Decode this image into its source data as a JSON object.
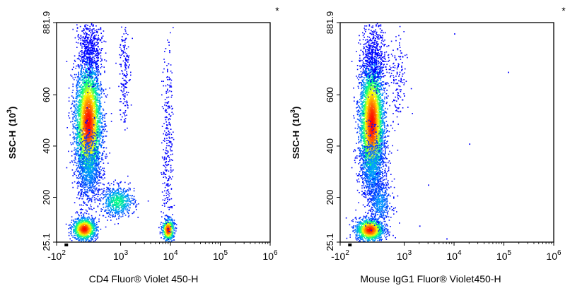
{
  "chart_data": [
    {
      "type": "scatter",
      "subtype": "flow-cytometry-density-dot-plot",
      "title": "",
      "corner_mark": "*",
      "xlabel": "CD4 Fluor® Violet 450-H",
      "ylabel": "SSC-H (10^3)",
      "ylabel_main": "SSC-H",
      "ylabel_unit_base": "(10",
      "ylabel_unit_exp": "3",
      "ylabel_unit_close": ")",
      "x_scale": "biexponential",
      "xlim": [
        -100,
        1000000
      ],
      "ylim": [
        25.1,
        881.9
      ],
      "x_ticks": [
        {
          "value": -100,
          "base": "-10",
          "exp": "2"
        },
        {
          "value": 1000,
          "base": "10",
          "exp": "3"
        },
        {
          "value": 10000,
          "base": "10",
          "exp": "4"
        },
        {
          "value": 100000,
          "base": "10",
          "exp": "5"
        },
        {
          "value": 1000000,
          "base": "10",
          "exp": "6"
        }
      ],
      "y_ticks": [
        {
          "value": 25.1,
          "label": "25.1"
        },
        {
          "value": 200,
          "label": "200"
        },
        {
          "value": 400,
          "label": "400"
        },
        {
          "value": 600,
          "label": "600"
        },
        {
          "value": 881.9,
          "label": "881.9"
        }
      ],
      "colormap": [
        "#0000ff",
        "#00a0ff",
        "#00ff80",
        "#ffff00",
        "#ff8000",
        "#ff0000"
      ],
      "populations": [
        {
          "x": 220,
          "y": 490,
          "sx_decades": 0.13,
          "sy": 115,
          "n": 4200,
          "peak_color": "#ff0000"
        },
        {
          "x": 230,
          "y": 320,
          "sx_decades": 0.12,
          "sy": 70,
          "n": 700,
          "peak_color": "#00a0ff"
        },
        {
          "x": 240,
          "y": 780,
          "sx_decades": 0.12,
          "sy": 60,
          "n": 500,
          "peak_color": "#0000ff"
        },
        {
          "x": 180,
          "y": 78,
          "sx_decades": 0.12,
          "sy": 22,
          "n": 1100,
          "peak_color": "#ff0000"
        },
        {
          "x": 850,
          "y": 185,
          "sx_decades": 0.17,
          "sy": 30,
          "n": 650,
          "peak_color": "#00ff80"
        },
        {
          "x": 1150,
          "y": 690,
          "sx_decades": 0.05,
          "sy": 110,
          "n": 180,
          "peak_color": "#0000ff"
        },
        {
          "x": 8800,
          "y": 75,
          "sx_decades": 0.06,
          "sy": 22,
          "n": 520,
          "peak_color": "#ff0000"
        },
        {
          "x": 8600,
          "y": 430,
          "sx_decades": 0.05,
          "sy": 200,
          "n": 300,
          "peak_color": "#0000ff"
        }
      ]
    },
    {
      "type": "scatter",
      "subtype": "flow-cytometry-density-dot-plot",
      "title": "",
      "corner_mark": "*",
      "xlabel": "Mouse IgG1 Fluor® Violet450-H",
      "ylabel": "SSC-H (10^3)",
      "ylabel_main": "SSC-H",
      "ylabel_unit_base": "(10",
      "ylabel_unit_exp": "3",
      "ylabel_unit_close": ")",
      "x_scale": "biexponential",
      "xlim": [
        -100,
        1000000
      ],
      "ylim": [
        25.1,
        881.9
      ],
      "x_ticks": [
        {
          "value": -100,
          "base": "-10",
          "exp": "2"
        },
        {
          "value": 1000,
          "base": "10",
          "exp": "3"
        },
        {
          "value": 10000,
          "base": "10",
          "exp": "4"
        },
        {
          "value": 100000,
          "base": "10",
          "exp": "5"
        },
        {
          "value": 1000000,
          "base": "10",
          "exp": "6"
        }
      ],
      "y_ticks": [
        {
          "value": 25.1,
          "label": "25.1"
        },
        {
          "value": 200,
          "label": "200"
        },
        {
          "value": 400,
          "label": "400"
        },
        {
          "value": 600,
          "label": "600"
        },
        {
          "value": 881.9,
          "label": "881.9"
        }
      ],
      "colormap": [
        "#0000ff",
        "#00a0ff",
        "#00ff80",
        "#ffff00",
        "#ff8000",
        "#ff0000"
      ],
      "populations": [
        {
          "x": 220,
          "y": 490,
          "sx_decades": 0.12,
          "sy": 115,
          "n": 4200,
          "peak_color": "#ff0000"
        },
        {
          "x": 230,
          "y": 320,
          "sx_decades": 0.12,
          "sy": 70,
          "n": 700,
          "peak_color": "#00a0ff"
        },
        {
          "x": 240,
          "y": 760,
          "sx_decades": 0.12,
          "sy": 65,
          "n": 500,
          "peak_color": "#0000ff"
        },
        {
          "x": 700,
          "y": 650,
          "sx_decades": 0.1,
          "sy": 90,
          "n": 160,
          "peak_color": "#0000ff"
        },
        {
          "x": 200,
          "y": 75,
          "sx_decades": 0.14,
          "sy": 22,
          "n": 1300,
          "peak_color": "#ff0000"
        },
        {
          "x": 320,
          "y": 180,
          "sx_decades": 0.12,
          "sy": 45,
          "n": 450,
          "peak_color": "#00a0ff"
        }
      ],
      "outliers": [
        {
          "x": 10000,
          "y": 840
        },
        {
          "x": 120000,
          "y": 690
        },
        {
          "x": 20000,
          "y": 410
        },
        {
          "x": 3000,
          "y": 250
        },
        {
          "x": 2000,
          "y": 90
        },
        {
          "x": 7000,
          "y": 40
        }
      ]
    }
  ]
}
